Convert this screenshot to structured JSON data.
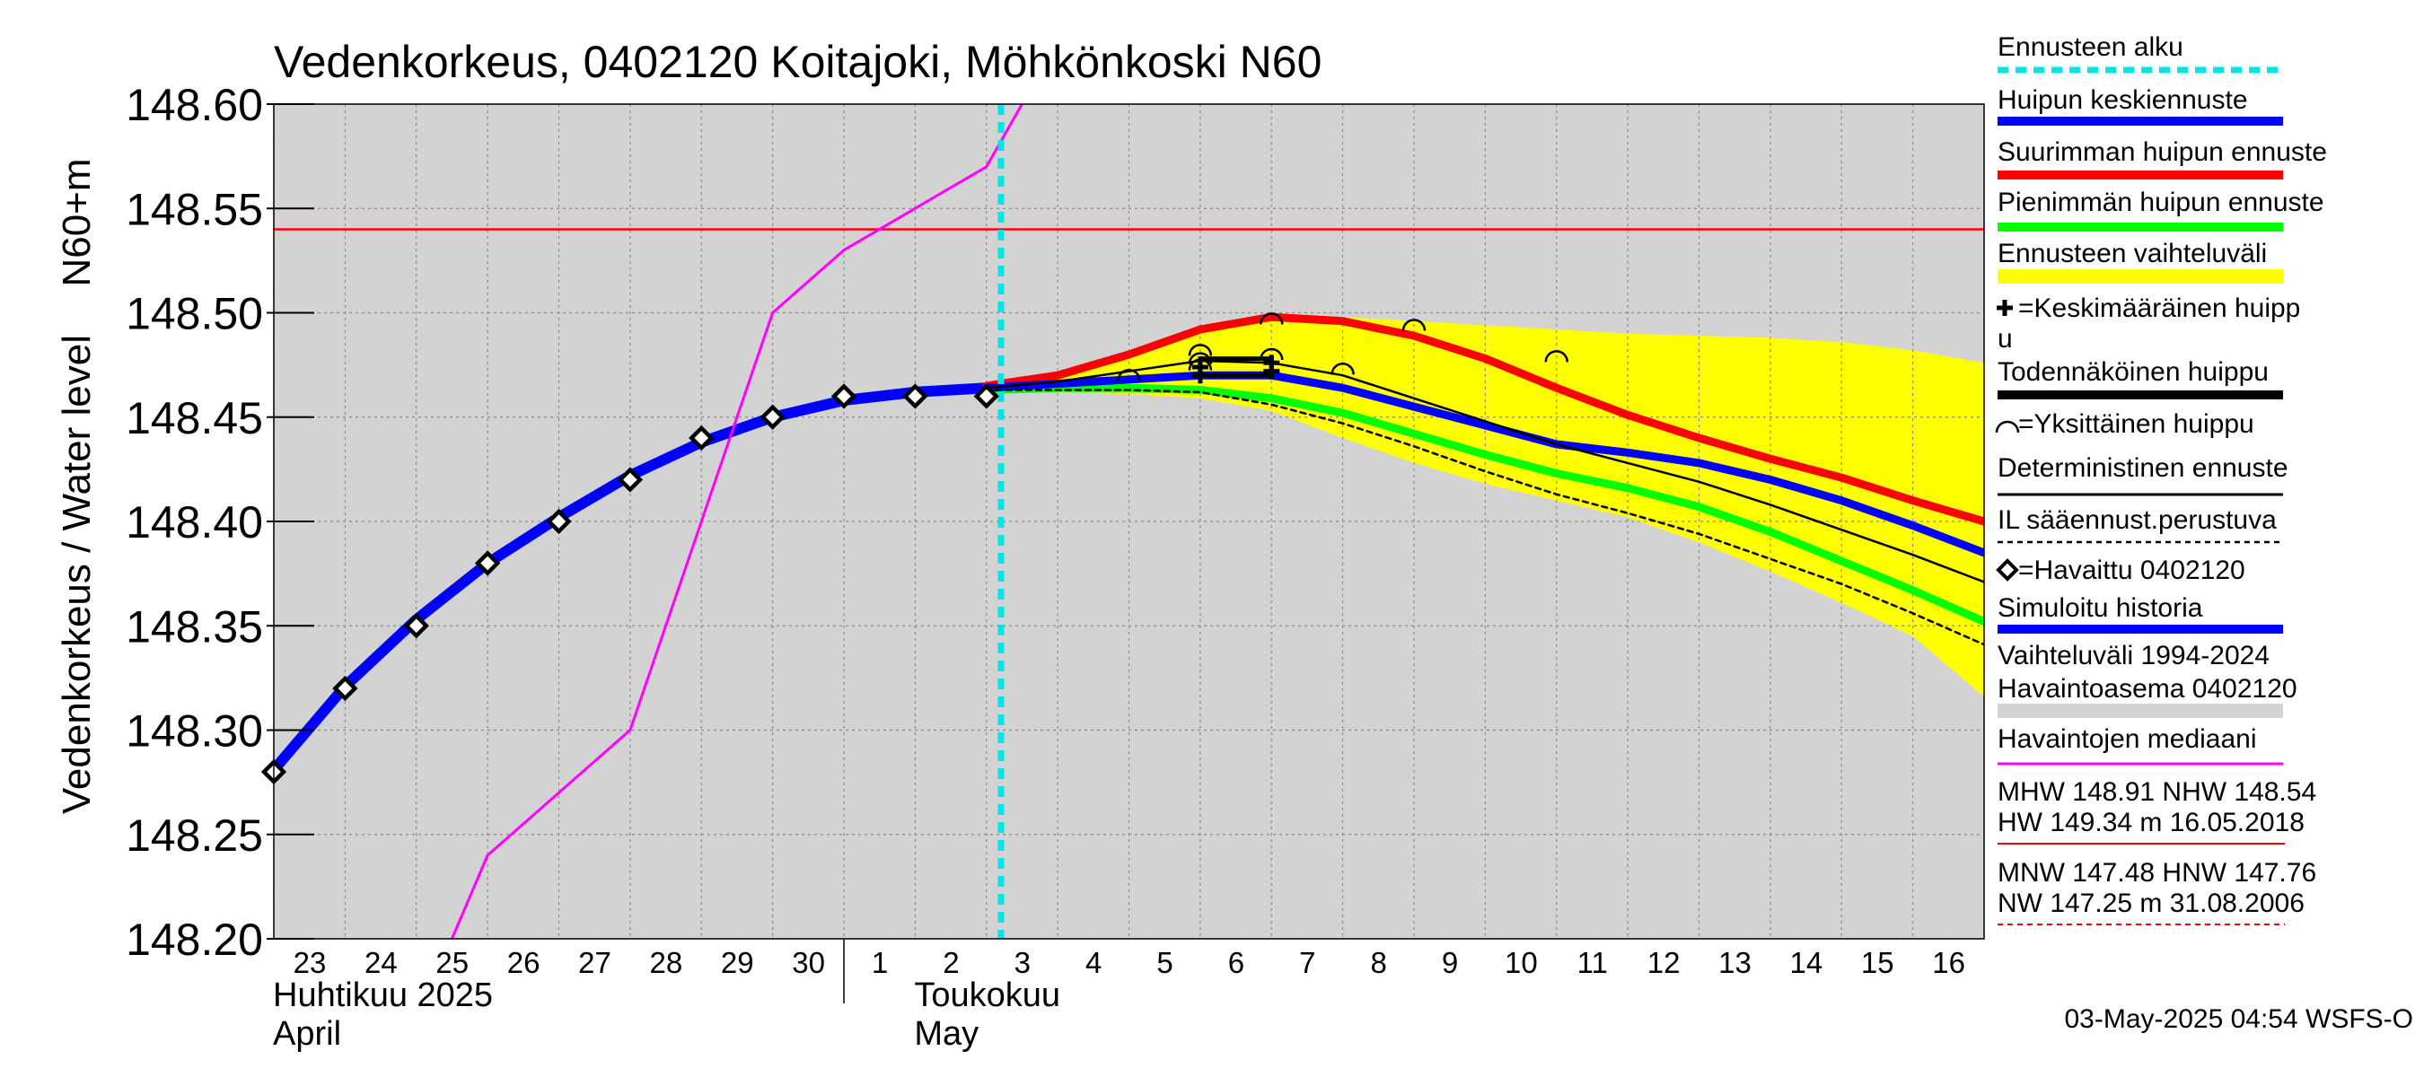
{
  "chart_data": {
    "type": "line",
    "title": "Vedenkorkeus, 0402120 Koitajoki, Möhkönkoski N60",
    "ylabel": "Vedenkorkeus / Water level",
    "yunit": "N60+m",
    "ylim": [
      148.2,
      148.6
    ],
    "yticks": [
      148.2,
      148.25,
      148.3,
      148.35,
      148.4,
      148.45,
      148.5,
      148.55,
      148.6
    ],
    "ytick_labels": [
      "148.20",
      "148.25",
      "148.30",
      "148.35",
      "148.40",
      "148.45",
      "148.50",
      "148.55",
      "148.60"
    ],
    "x_start": "2025-04-23",
    "x_end": "2025-05-17",
    "x_days": [
      "2025-04-23",
      "2025-04-24",
      "2025-04-25",
      "2025-04-26",
      "2025-04-27",
      "2025-04-28",
      "2025-04-29",
      "2025-04-30",
      "2025-05-01",
      "2025-05-02",
      "2025-05-03",
      "2025-05-04",
      "2025-05-05",
      "2025-05-06",
      "2025-05-07",
      "2025-05-08",
      "2025-05-09",
      "2025-05-10",
      "2025-05-11",
      "2025-05-12",
      "2025-05-13",
      "2025-05-14",
      "2025-05-15",
      "2025-05-16"
    ],
    "x_day_labels": [
      "23",
      "24",
      "25",
      "26",
      "27",
      "28",
      "29",
      "30",
      "1",
      "2",
      "3",
      "4",
      "5",
      "6",
      "7",
      "8",
      "9",
      "10",
      "11",
      "12",
      "13",
      "14",
      "15",
      "16"
    ],
    "month_labels": [
      {
        "fi": "Huhtikuu  2025",
        "en": "April",
        "start": "2025-04-23"
      },
      {
        "fi": "Toukokuu",
        "en": "May",
        "start": "2025-05-02"
      }
    ],
    "month_boundary": "2025-05-01",
    "grid": true,
    "plot_background": "#d3d3d3",
    "forecast_start": "2025-05-03 04:54",
    "nhw_level": 148.54,
    "series": [
      {
        "name": "Havaittu 0402120",
        "kind": "observed",
        "points": [
          [
            "2025-04-23",
            148.28
          ],
          [
            "2025-04-24",
            148.32
          ],
          [
            "2025-04-25",
            148.35
          ],
          [
            "2025-04-26",
            148.38
          ],
          [
            "2025-04-27",
            148.4
          ],
          [
            "2025-04-28",
            148.42
          ],
          [
            "2025-04-29",
            148.44
          ],
          [
            "2025-04-30",
            148.45
          ],
          [
            "2025-05-01",
            148.46
          ],
          [
            "2025-05-02",
            148.46
          ],
          [
            "2025-05-03",
            148.46
          ]
        ]
      },
      {
        "name": "Simuloitu historia",
        "kind": "simulated",
        "color": "#0000ff",
        "points": [
          [
            "2025-04-23",
            148.281
          ],
          [
            "2025-04-24",
            148.321
          ],
          [
            "2025-04-25",
            148.353
          ],
          [
            "2025-04-26",
            148.38
          ],
          [
            "2025-04-27",
            148.402
          ],
          [
            "2025-04-28",
            148.422
          ],
          [
            "2025-04-29",
            148.438
          ],
          [
            "2025-04-30",
            148.45
          ],
          [
            "2025-05-01",
            148.458
          ],
          [
            "2025-05-02",
            148.462
          ],
          [
            "2025-05-03",
            148.464
          ]
        ]
      },
      {
        "name": "Havaintojen mediaani",
        "kind": "median",
        "color": "#ff00ff",
        "points": [
          [
            "2025-04-25 12:00",
            148.2
          ],
          [
            "2025-04-26",
            148.24
          ],
          [
            "2025-04-27",
            148.27
          ],
          [
            "2025-04-28",
            148.3
          ],
          [
            "2025-04-29",
            148.4
          ],
          [
            "2025-04-30",
            148.5
          ],
          [
            "2025-05-01",
            148.53
          ],
          [
            "2025-05-02",
            148.55
          ],
          [
            "2025-05-03",
            148.57
          ],
          [
            "2025-05-03 12:00",
            148.6
          ]
        ]
      },
      {
        "name": "Suurimman huipun ennuste",
        "kind": "max",
        "color": "#ff0000",
        "points": [
          [
            "2025-05-03",
            148.465
          ],
          [
            "2025-05-04",
            148.47
          ],
          [
            "2025-05-05",
            148.48
          ],
          [
            "2025-05-06",
            148.492
          ],
          [
            "2025-05-07",
            148.498
          ],
          [
            "2025-05-08",
            148.496
          ],
          [
            "2025-05-09",
            148.489
          ],
          [
            "2025-05-10",
            148.478
          ],
          [
            "2025-05-11",
            148.464
          ],
          [
            "2025-05-12",
            148.451
          ],
          [
            "2025-05-13",
            148.44
          ],
          [
            "2025-05-14",
            148.43
          ],
          [
            "2025-05-15",
            148.421
          ],
          [
            "2025-05-16",
            148.41
          ],
          [
            "2025-05-17",
            148.4
          ]
        ]
      },
      {
        "name": "Huipun keskiennuste",
        "kind": "mean",
        "color": "#0000ff",
        "points": [
          [
            "2025-05-03",
            148.464
          ],
          [
            "2025-05-04",
            148.466
          ],
          [
            "2025-05-05",
            148.468
          ],
          [
            "2025-05-06",
            148.47
          ],
          [
            "2025-05-07",
            148.47
          ],
          [
            "2025-05-08",
            148.464
          ],
          [
            "2025-05-09",
            148.455
          ],
          [
            "2025-05-10",
            148.446
          ],
          [
            "2025-05-11",
            148.437
          ],
          [
            "2025-05-12",
            148.433
          ],
          [
            "2025-05-13",
            148.428
          ],
          [
            "2025-05-14",
            148.42
          ],
          [
            "2025-05-15",
            148.41
          ],
          [
            "2025-05-16",
            148.398
          ],
          [
            "2025-05-17",
            148.385
          ]
        ]
      },
      {
        "name": "Pienimmän huipun ennuste",
        "kind": "min",
        "color": "#00ff00",
        "points": [
          [
            "2025-05-03",
            148.463
          ],
          [
            "2025-05-04",
            148.464
          ],
          [
            "2025-05-05",
            148.464
          ],
          [
            "2025-05-06",
            148.463
          ],
          [
            "2025-05-07",
            148.459
          ],
          [
            "2025-05-08",
            148.452
          ],
          [
            "2025-05-09",
            148.442
          ],
          [
            "2025-05-10",
            148.432
          ],
          [
            "2025-05-11",
            148.423
          ],
          [
            "2025-05-12",
            148.416
          ],
          [
            "2025-05-13",
            148.407
          ],
          [
            "2025-05-14",
            148.395
          ],
          [
            "2025-05-15",
            148.381
          ],
          [
            "2025-05-16",
            148.367
          ],
          [
            "2025-05-17",
            148.352
          ]
        ]
      },
      {
        "name": "Deterministinen ennuste",
        "kind": "deterministic",
        "color": "#000000",
        "points": [
          [
            "2025-05-03",
            148.464
          ],
          [
            "2025-05-04",
            148.467
          ],
          [
            "2025-05-05",
            148.472
          ],
          [
            "2025-05-06",
            148.477
          ],
          [
            "2025-05-07",
            148.476
          ],
          [
            "2025-05-08",
            148.47
          ],
          [
            "2025-05-09",
            148.459
          ],
          [
            "2025-05-10",
            148.448
          ],
          [
            "2025-05-11",
            148.437
          ],
          [
            "2025-05-12",
            148.428
          ],
          [
            "2025-05-13",
            148.419
          ],
          [
            "2025-05-14",
            148.408
          ],
          [
            "2025-05-15",
            148.396
          ],
          [
            "2025-05-16",
            148.384
          ],
          [
            "2025-05-17",
            148.371
          ]
        ]
      },
      {
        "name": "IL sääennust.perustuva",
        "kind": "il",
        "color": "#000000",
        "points": [
          [
            "2025-05-03",
            148.463
          ],
          [
            "2025-05-04",
            148.463
          ],
          [
            "2025-05-05",
            148.463
          ],
          [
            "2025-05-06",
            148.462
          ],
          [
            "2025-05-07",
            148.456
          ],
          [
            "2025-05-08",
            148.447
          ],
          [
            "2025-05-09",
            148.436
          ],
          [
            "2025-05-10",
            148.424
          ],
          [
            "2025-05-11",
            148.413
          ],
          [
            "2025-05-12",
            148.404
          ],
          [
            "2025-05-13",
            148.394
          ],
          [
            "2025-05-14",
            148.382
          ],
          [
            "2025-05-15",
            148.37
          ],
          [
            "2025-05-16",
            148.356
          ],
          [
            "2025-05-17",
            148.341
          ]
        ]
      }
    ],
    "forecast_band": {
      "name": "Ennusteen vaihteluväli",
      "color": "#ffff00",
      "upper": [
        [
          "2025-05-03",
          148.466
        ],
        [
          "2025-05-04",
          148.47
        ],
        [
          "2025-05-05",
          148.481
        ],
        [
          "2025-05-06",
          148.493
        ],
        [
          "2025-05-07",
          148.499
        ],
        [
          "2025-05-08",
          148.498
        ],
        [
          "2025-05-09",
          148.496
        ],
        [
          "2025-05-10",
          148.494
        ],
        [
          "2025-05-11",
          148.492
        ],
        [
          "2025-05-12",
          148.49
        ],
        [
          "2025-05-13",
          148.489
        ],
        [
          "2025-05-14",
          148.488
        ],
        [
          "2025-05-15",
          148.486
        ],
        [
          "2025-05-16",
          148.482
        ],
        [
          "2025-05-17",
          148.476
        ]
      ],
      "lower": [
        [
          "2025-05-03",
          148.462
        ],
        [
          "2025-05-04",
          148.462
        ],
        [
          "2025-05-05",
          148.461
        ],
        [
          "2025-05-06",
          148.459
        ],
        [
          "2025-05-07",
          148.453
        ],
        [
          "2025-05-08",
          148.44
        ],
        [
          "2025-05-09",
          148.428
        ],
        [
          "2025-05-10",
          148.418
        ],
        [
          "2025-05-11",
          148.41
        ],
        [
          "2025-05-12",
          148.402
        ],
        [
          "2025-05-13",
          148.39
        ],
        [
          "2025-05-14",
          148.376
        ],
        [
          "2025-05-15",
          148.361
        ],
        [
          "2025-05-16",
          148.345
        ],
        [
          "2025-05-17",
          148.316
        ]
      ]
    },
    "individual_peaks": [
      [
        "2025-05-05",
        148.47
      ],
      [
        "2025-05-06",
        148.478
      ],
      [
        "2025-05-06",
        148.482
      ],
      [
        "2025-05-06",
        148.475
      ],
      [
        "2025-05-07",
        148.48
      ],
      [
        "2025-05-07",
        148.497
      ],
      [
        "2025-05-08",
        148.473
      ],
      [
        "2025-05-09",
        148.494
      ],
      [
        "2025-05-11",
        148.479
      ]
    ],
    "mean_peak_marks": [
      [
        "2025-05-06",
        148.47
      ],
      [
        "2025-05-06",
        148.474
      ],
      [
        "2025-05-07",
        148.476
      ],
      [
        "2025-05-07",
        148.472
      ]
    ],
    "probable_peak_box": {
      "from": "2025-05-06",
      "to": "2025-05-07",
      "low": 148.47,
      "high": 148.478
    },
    "legend": {
      "placement": "right",
      "items": [
        {
          "label": "Ennusteen alku",
          "style": "dashed",
          "color": "#00e5e5"
        },
        {
          "label": "Huipun keskiennuste",
          "style": "thick",
          "color": "#0000ff"
        },
        {
          "label": "Suurimman huipun ennuste",
          "style": "thick",
          "color": "#ff0000"
        },
        {
          "label": "Pienimmän huipun ennuste",
          "style": "thick",
          "color": "#00ff00"
        },
        {
          "label": "Ennusteen vaihteluväli",
          "style": "band",
          "color": "#ffff00"
        },
        {
          "label": "=Keskimääräinen huipp",
          "label2": "u",
          "style": "cross",
          "color": "#000000"
        },
        {
          "label": "Todennäköinen huippu",
          "style": "thick",
          "color": "#000000"
        },
        {
          "label": "=Yksittäinen huippu",
          "style": "arc",
          "color": "#000000"
        },
        {
          "label": "Deterministinen ennuste",
          "style": "thin",
          "color": "#000000"
        },
        {
          "label": "IL sääennust.perustuva",
          "style": "dotted",
          "color": "#000000"
        },
        {
          "label": "=Havaittu 0402120",
          "style": "diamond",
          "color": "#000000"
        },
        {
          "label": "Simuloitu historia",
          "style": "thick",
          "color": "#0000ff"
        },
        {
          "label": "Vaihteluväli 1994-2024",
          "label2": " Havaintoasema 0402120",
          "style": "band",
          "color": "#d3d3d3"
        },
        {
          "label": "Havaintojen mediaani",
          "style": "thin",
          "color": "#ff00ff"
        }
      ]
    },
    "stats": {
      "line1": "MHW 148.91 NHW 148.54",
      "line2": "HW 149.34 m 16.05.2018",
      "line3": "MNW 147.48 HNW 147.76",
      "line4": "NW 147.25 m 31.08.2006"
    },
    "footer": "03-May-2025 04:54 WSFS-O"
  }
}
